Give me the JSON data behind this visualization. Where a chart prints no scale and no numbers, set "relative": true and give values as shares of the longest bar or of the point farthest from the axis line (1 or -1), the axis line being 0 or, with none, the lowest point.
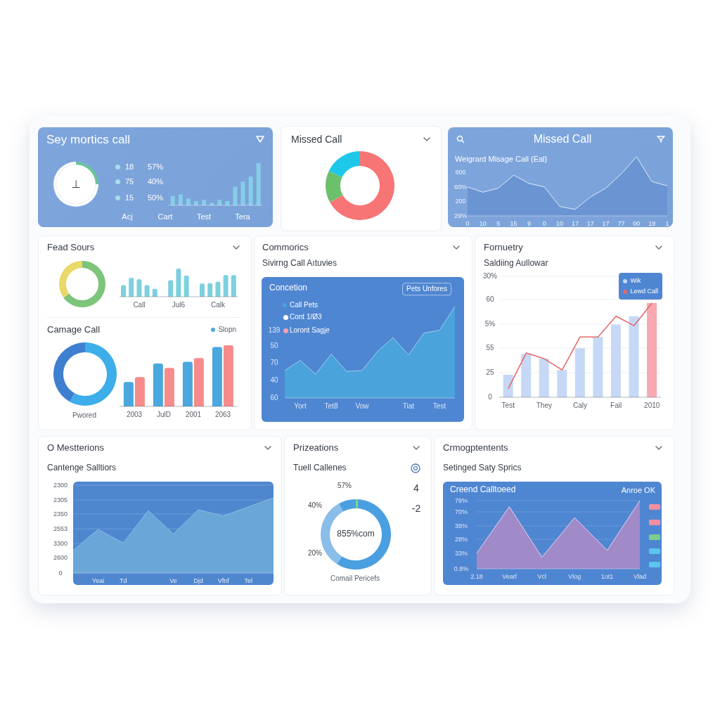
{
  "chart_data": [
    {
      "type": "donut",
      "title": "Sey mortics call",
      "categories": [
        null,
        null
      ],
      "values": [
        25,
        75
      ],
      "colors": [
        "#6cc49a",
        "#ffffff"
      ],
      "annotations": [
        "⊥",
        "18",
        "57%",
        "75",
        "40%",
        "15",
        "50%"
      ]
    },
    {
      "type": "bar",
      "relative": true,
      "categories": [
        null,
        null,
        null,
        null,
        null,
        null,
        null,
        null,
        null,
        null,
        null,
        null
      ],
      "values": [
        0.22,
        0.26,
        0.16,
        0.1,
        0.13,
        0.06,
        0.13,
        0.1,
        0.44,
        0.56,
        0.68,
        1
      ],
      "color": "#86cde8",
      "annotations": [
        "Acj",
        "Cart",
        "Test",
        "Tera"
      ]
    },
    {
      "type": "donut",
      "title": "Missed Call",
      "categories": [
        null,
        null,
        null
      ],
      "values": [
        67,
        15,
        18
      ],
      "colors": [
        "#f87575",
        "#6cc06c",
        "#1ec8e8"
      ]
    },
    {
      "type": "area",
      "title": "Missed Call",
      "subtitle": "Weigrard Misage Call (Eal)",
      "relative": true,
      "categories": [
        "0",
        "10",
        "5",
        "15",
        "9",
        "0",
        "10",
        "17",
        "17",
        "17",
        "77",
        "00",
        "19",
        "1"
      ],
      "values": [
        0.49,
        0.4,
        0.47,
        0.69,
        0.55,
        0.49,
        0.16,
        0.11,
        0.32,
        0.47,
        0.71,
        1,
        0.58,
        0.51
      ],
      "color": "#6a95d2",
      "annotations": [
        "800",
        "60%",
        "200",
        "29%"
      ]
    },
    {
      "type": "donut",
      "title": "Fead Sours",
      "categories": [
        null,
        null
      ],
      "values": [
        65,
        35
      ],
      "colors": [
        "#7cc57a",
        "#e8d96a"
      ]
    },
    {
      "type": "bar",
      "relative": true,
      "categories": [
        null,
        null,
        "Call",
        null,
        null,
        null,
        null,
        "Jul6",
        null,
        null,
        null,
        null,
        "Calk",
        null,
        null
      ],
      "values": [
        0.41,
        0.67,
        0.62,
        0.41,
        0.28,
        null,
        0.59,
        1,
        0.75,
        null,
        0.47,
        0.48,
        0.53,
        0.77,
        0.77
      ],
      "color": "#7ed0de"
    },
    {
      "type": "donut",
      "title": "Camage Call",
      "categories": [
        null,
        null
      ],
      "values": [
        58,
        42
      ],
      "colors": [
        "#3daee9",
        "#3f7fcf"
      ],
      "annotations": [
        "Pwored"
      ]
    },
    {
      "type": "bar",
      "relative": true,
      "categories": [
        "2003",
        "JulD",
        "2001",
        "2063"
      ],
      "series": [
        {
          "name": "Slopn",
          "color": "#4aa8de",
          "values": [
            0.4,
            0.7,
            0.73,
            0.97
          ]
        },
        {
          "color": "#f78b8b",
          "values": [
            0.48,
            0.63,
            0.79,
            1
          ]
        }
      ],
      "legend": "top right"
    },
    {
      "type": "area",
      "title": "Commorics",
      "subtitle": "Sivirng Call Aıtuvies",
      "relative": true,
      "categories": [
        null,
        "Yort",
        null,
        "Tet8",
        null,
        "Vow",
        null,
        null,
        "Tiat",
        null,
        "Test",
        null
      ],
      "series": [
        {
          "name": "Call Pets",
          "color": "#4aa3da",
          "values": [
            0.3,
            0.41,
            0.26,
            0.48,
            0.29,
            0.3,
            0.51,
            0.66,
            0.47,
            0.71,
            0.74,
            1
          ]
        }
      ],
      "legend": "top left",
      "annotations": [
        "Concetion",
        "Pets Unfores",
        "Cont 1/Ø3",
        "Loront Sagje",
        "139",
        "50",
        "70",
        "40",
        "60"
      ]
    },
    {
      "type": "bar",
      "title": "Fornuetry",
      "subtitle": "Saldiing Aullowar",
      "relative": true,
      "categories": [
        "Test",
        null,
        "They",
        null,
        "Caly",
        null,
        "Fail",
        null,
        "2010"
      ],
      "series": [
        {
          "name": "Wik",
          "colors": [
            "#c6d8f6",
            "#c6d8f6",
            "#c6d8f6",
            "#c6d8f6",
            "#c6d8f6",
            "#c6d8f6",
            "#c6d8f6",
            "#c6d8f6",
            "#f7a8b0"
          ],
          "values": [
            0.24,
            0.46,
            0.41,
            0.29,
            0.52,
            0.64,
            0.77,
            0.86,
            1
          ]
        },
        {
          "name": "Lewd Call",
          "type": "line",
          "color": "#e06b6b",
          "values": [
            0.09,
            0.47,
            0.41,
            0.29,
            0.64,
            0.64,
            0.86,
            0.76,
            1
          ]
        }
      ],
      "grid": "y",
      "legend": "top right",
      "annotations": [
        "30%",
        "60",
        "5%",
        "55",
        "25",
        "0"
      ]
    },
    {
      "type": "area",
      "title": "O Mestterions",
      "subtitle": "Cantenge Salltiors",
      "relative": true,
      "categories": [
        null,
        "Yeai",
        "Td",
        null,
        "Ve",
        "Djd",
        "Vfnf",
        "Tel",
        null
      ],
      "values": [
        0.3,
        0.58,
        0.4,
        0.83,
        0.52,
        0.84,
        0.76,
        0.88,
        1
      ],
      "color": "#6aa6d8",
      "grid": "y",
      "annotations": [
        "2300",
        "2305",
        "2350",
        "2553",
        "3300",
        "2600",
        "0"
      ]
    },
    {
      "type": "donut",
      "title": "Prizeations",
      "subtitle": "Tuell Callenes",
      "categories": [
        null,
        null,
        null,
        null
      ],
      "values": [
        1,
        58,
        33,
        8
      ],
      "colors": [
        "#7bd389",
        "#4a9fe0",
        "#8bbdea",
        "#4a9fe0"
      ],
      "annotations": [
        "57%",
        "40%",
        "20%",
        "855%com",
        "Comail Pericefs",
        "4",
        "-2"
      ]
    },
    {
      "type": "area",
      "title": "Crmogptentents",
      "subtitle": "Setinged Saty Sprics",
      "relative": true,
      "categories": [
        "2.18",
        "Vearl",
        "Vcl",
        "Vlog",
        "1ot1",
        "Vlad"
      ],
      "values": [
        0.23,
        0.91,
        0.17,
        0.75,
        0.27,
        1
      ],
      "color": "#a08ac8",
      "grid": "y",
      "annotations": [
        "Creend Calltoeed",
        "Anroe OK",
        "78%",
        "70%",
        "38%",
        "28%",
        "33%",
        "0.8%"
      ]
    }
  ]
}
